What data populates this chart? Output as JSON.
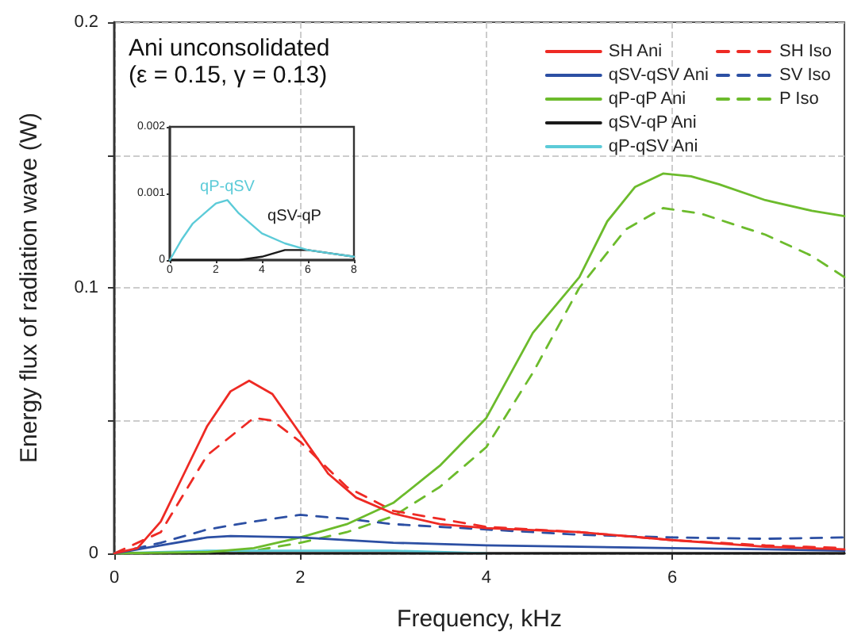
{
  "chart_data": [
    {
      "type": "line",
      "title": "Ani unconsolidated",
      "subtitle": "(ε = 0.15, γ = 0.13)",
      "xlabel": "Frequency, kHz",
      "ylabel": "Energy flux of radiation wave (W)",
      "xlim": [
        0,
        7.85
      ],
      "ylim": [
        0,
        0.2
      ],
      "xticks": [
        0,
        2,
        4,
        6
      ],
      "yticks": [
        0,
        {
          "value": 0.05,
          "label": null
        },
        0.1,
        {
          "value": 0.15,
          "label": null
        },
        0.2
      ],
      "grid": true,
      "legend": "top right",
      "series": [
        {
          "name": "SH Ani",
          "color": "#ee2a24",
          "line_style": "solid",
          "x": [
            0,
            0.25,
            0.5,
            0.75,
            1,
            1.25,
            1.45,
            1.7,
            2,
            2.3,
            2.6,
            3,
            3.5,
            4,
            5,
            6,
            7,
            7.85
          ],
          "values": [
            0,
            0.002,
            0.012,
            0.03,
            0.048,
            0.061,
            0.065,
            0.06,
            0.045,
            0.03,
            0.021,
            0.015,
            0.011,
            0.0095,
            0.008,
            0.005,
            0.0025,
            0.0015
          ]
        },
        {
          "name": "qSV-qSV Ani",
          "color": "#2c4fa3",
          "line_style": "solid",
          "x": [
            0,
            0.5,
            1,
            1.25,
            2,
            3,
            4,
            5,
            6,
            7,
            7.85
          ],
          "values": [
            0,
            0.003,
            0.006,
            0.0065,
            0.006,
            0.004,
            0.003,
            0.0025,
            0.002,
            0.0015,
            0.001
          ]
        },
        {
          "name": "qP-qP Ani",
          "color": "#6cbb2c",
          "line_style": "solid",
          "x": [
            0,
            1,
            1.5,
            2,
            2.5,
            3,
            3.5,
            4,
            4.5,
            5,
            5.3,
            5.6,
            5.9,
            6.2,
            6.5,
            7,
            7.5,
            7.85
          ],
          "values": [
            0,
            0.0005,
            0.002,
            0.006,
            0.011,
            0.019,
            0.033,
            0.051,
            0.083,
            0.104,
            0.125,
            0.138,
            0.143,
            0.142,
            0.139,
            0.133,
            0.129,
            0.127
          ]
        },
        {
          "name": "qSV-qP Ani",
          "color": "#1a1a1a",
          "line_style": "solid",
          "x": [
            0,
            4,
            7.85
          ],
          "values": [
            0,
            0,
            0
          ]
        },
        {
          "name": "qP-qSV Ani",
          "color": "#5ccbd8",
          "line_style": "solid",
          "x": [
            0,
            1,
            2,
            3,
            4
          ],
          "values": [
            0,
            0.001,
            0.001,
            0.001,
            0
          ]
        },
        {
          "name": "SH Iso",
          "color": "#ee2a24",
          "line_style": "dashed",
          "x": [
            0,
            0.5,
            1,
            1.5,
            1.7,
            2,
            2.5,
            3,
            4,
            5,
            6,
            7,
            7.85
          ],
          "values": [
            0,
            0.008,
            0.037,
            0.051,
            0.05,
            0.042,
            0.025,
            0.016,
            0.01,
            0.008,
            0.005,
            0.003,
            0.002
          ]
        },
        {
          "name": "SV Iso",
          "color": "#2c4fa3",
          "line_style": "dashed",
          "x": [
            0,
            0.5,
            1,
            1.5,
            2,
            2.5,
            3,
            4,
            5,
            6,
            7,
            7.85
          ],
          "values": [
            0,
            0.004,
            0.009,
            0.012,
            0.0145,
            0.013,
            0.011,
            0.009,
            0.007,
            0.006,
            0.0055,
            0.006
          ]
        },
        {
          "name": "P Iso",
          "color": "#6cbb2c",
          "line_style": "dashed",
          "x": [
            0,
            1,
            1.5,
            2,
            2.5,
            3,
            3.5,
            4,
            4.5,
            5,
            5.5,
            5.9,
            6.3,
            7,
            7.5,
            7.85
          ],
          "values": [
            0,
            0,
            0.001,
            0.004,
            0.008,
            0.014,
            0.025,
            0.04,
            0.068,
            0.1,
            0.122,
            0.13,
            0.128,
            0.12,
            0.112,
            0.104
          ]
        }
      ]
    },
    {
      "type": "line",
      "xlim": [
        0,
        8
      ],
      "ylim": [
        0,
        0.002
      ],
      "xticks": [
        0,
        2,
        4,
        6,
        8
      ],
      "yticks": [
        0,
        0.001,
        0.002
      ],
      "series": [
        {
          "name": "qP-qSV",
          "color": "#5ccbd8",
          "x": [
            0,
            0.5,
            1,
            1.5,
            2,
            2.5,
            3,
            3.5,
            4,
            5,
            6,
            7,
            8
          ],
          "values": [
            0,
            0.0003,
            0.00055,
            0.0007,
            0.00085,
            0.0009,
            0.0007,
            0.00055,
            0.0004,
            0.00025,
            0.00015,
            0.0001,
            5e-05
          ]
        },
        {
          "name": "qSV-qP",
          "color": "#1a1a1a",
          "x": [
            0,
            2,
            3,
            4,
            5,
            5.5,
            6,
            7,
            8
          ],
          "values": [
            0,
            0,
            0,
            5e-05,
            0.00015,
            0.00015,
            0.00015,
            0.0001,
            5e-05
          ]
        }
      ]
    }
  ]
}
